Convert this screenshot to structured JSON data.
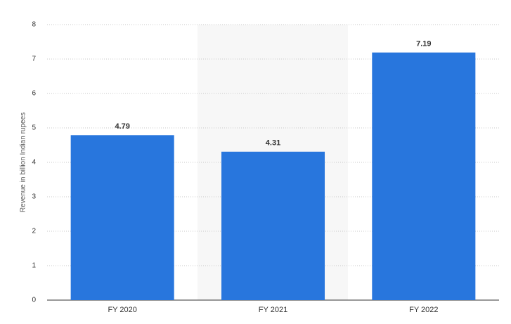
{
  "chart_data": {
    "type": "bar",
    "y_label": "Revenue in billion Indian rupees",
    "categories": [
      "FY 2020",
      "FY 2021",
      "FY 2022"
    ],
    "values": [
      4.79,
      4.31,
      7.19
    ],
    "color": "#2876dd",
    "ylim": [
      0,
      8
    ],
    "yticks": [
      0,
      1,
      2,
      3,
      4,
      5,
      6,
      7,
      8
    ],
    "grid": true
  }
}
